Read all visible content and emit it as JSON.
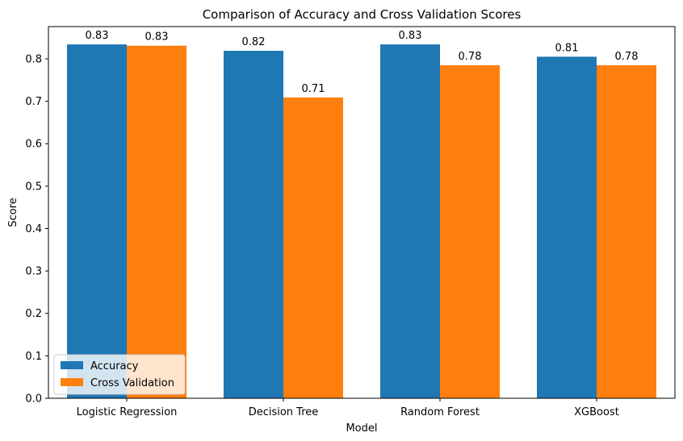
{
  "chart_data": {
    "type": "bar",
    "title": "Comparison of Accuracy and Cross Validation Scores",
    "xlabel": "Model",
    "ylabel": "Score",
    "categories": [
      "Logistic Regression",
      "Decision Tree",
      "Random Forest",
      "XGBoost"
    ],
    "series": [
      {
        "name": "Accuracy",
        "color": "#1f77b4",
        "values": [
          0.834,
          0.819,
          0.834,
          0.805
        ],
        "labels": [
          "0.83",
          "0.82",
          "0.83",
          "0.81"
        ]
      },
      {
        "name": "Cross Validation",
        "color": "#ff7f0e",
        "values": [
          0.831,
          0.709,
          0.785,
          0.785
        ],
        "labels": [
          "0.83",
          "0.71",
          "0.78",
          "0.78"
        ]
      }
    ],
    "ylim": [
      0,
      0.876
    ],
    "yticks": [
      0.0,
      0.1,
      0.2,
      0.3,
      0.4,
      0.5,
      0.6,
      0.7,
      0.8
    ],
    "ytick_labels": [
      "0.0",
      "0.1",
      "0.2",
      "0.3",
      "0.4",
      "0.5",
      "0.6",
      "0.7",
      "0.8"
    ],
    "grid": false,
    "legend_position": "lower-left"
  }
}
